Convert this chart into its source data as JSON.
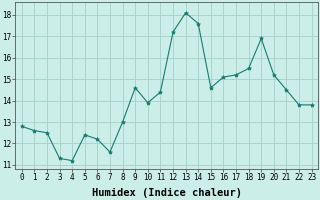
{
  "x": [
    0,
    1,
    2,
    3,
    4,
    5,
    6,
    7,
    8,
    9,
    10,
    11,
    12,
    13,
    14,
    15,
    16,
    17,
    18,
    19,
    20,
    21,
    22,
    23
  ],
  "y": [
    12.8,
    12.6,
    12.5,
    11.3,
    11.2,
    12.4,
    12.2,
    11.6,
    13.0,
    14.6,
    13.9,
    14.4,
    17.2,
    18.1,
    17.6,
    14.6,
    15.1,
    15.2,
    15.5,
    16.9,
    15.2,
    14.5,
    13.8,
    13.8
  ],
  "line_color": "#1a7a6e",
  "marker": "*",
  "marker_size": 3,
  "bg_color": "#cceee8",
  "grid_color": "#aad4ce",
  "xlabel": "Humidex (Indice chaleur)",
  "ylim": [
    10.8,
    18.6
  ],
  "xlim": [
    -0.5,
    23.5
  ],
  "yticks": [
    11,
    12,
    13,
    14,
    15,
    16,
    17,
    18
  ],
  "xticks": [
    0,
    1,
    2,
    3,
    4,
    5,
    6,
    7,
    8,
    9,
    10,
    11,
    12,
    13,
    14,
    15,
    16,
    17,
    18,
    19,
    20,
    21,
    22,
    23
  ],
  "xtick_labels": [
    "0",
    "1",
    "2",
    "3",
    "4",
    "5",
    "6",
    "7",
    "8",
    "9",
    "10",
    "11",
    "12",
    "13",
    "14",
    "15",
    "16",
    "17",
    "18",
    "19",
    "20",
    "21",
    "22",
    "23"
  ],
  "tick_fontsize": 5.5,
  "xlabel_fontsize": 7.5,
  "ylabel_fontsize": 6
}
